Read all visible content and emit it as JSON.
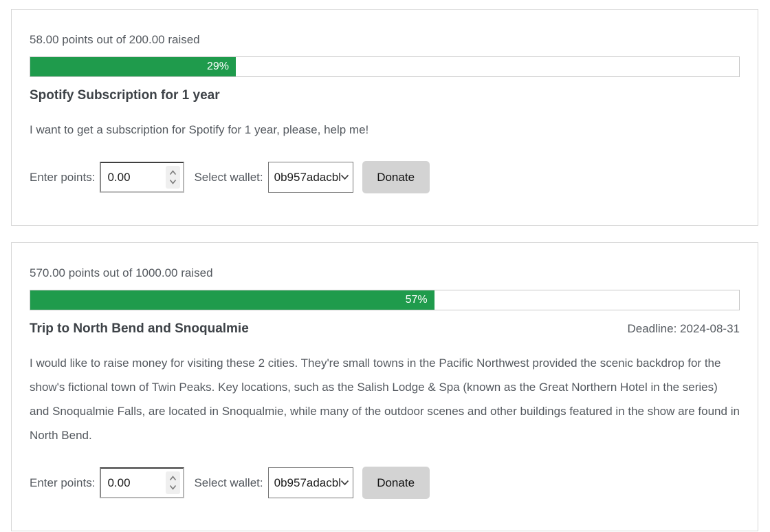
{
  "colors": {
    "progress_fill_green": "#1f9b4c",
    "card_border": "#d6d6d6",
    "donate_button_bg": "#d3d3d3",
    "body_text": "#54595f",
    "title_text": "#3d4247"
  },
  "campaigns": [
    {
      "raised_text": "58.00 points out of 200.00 raised",
      "progress_percent": 29,
      "progress_label": "29%",
      "title": "Spotify Subscription for 1 year",
      "description": "I want to get a subscription for Spotify for 1 year, please, help me!",
      "controls": {
        "enter_points_label": "Enter points:",
        "points_value": "0.00",
        "select_wallet_label": "Select wallet:",
        "wallet_selected": "0b957adacbl",
        "donate_label": "Donate"
      }
    },
    {
      "raised_text": "570.00 points out of 1000.00 raised",
      "progress_percent": 57,
      "progress_label": "57%",
      "title": "Trip to North Bend and Snoqualmie",
      "deadline_text": "Deadline: 2024-08-31",
      "description": "I would like to raise money for visiting these 2 cities. They're small towns in the Pacific Northwest provided the scenic backdrop for the show's fictional town of Twin Peaks. Key locations, such as the Salish Lodge & Spa (known as the Great Northern Hotel in the series) and Snoqualmie Falls, are located in Snoqualmie, while many of the outdoor scenes and other buildings featured in the show are found in North Bend.",
      "controls": {
        "enter_points_label": "Enter points:",
        "points_value": "0.00",
        "select_wallet_label": "Select wallet:",
        "wallet_selected": "0b957adacbl",
        "donate_label": "Donate"
      }
    }
  ]
}
